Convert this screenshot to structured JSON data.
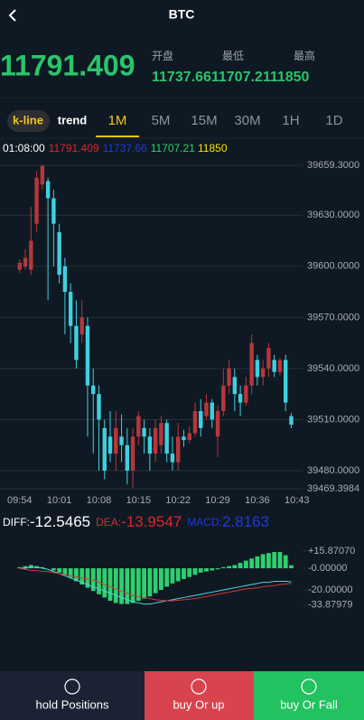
{
  "header": {
    "title": "BTC"
  },
  "ticker": {
    "price": "11791.409",
    "labels": [
      "开盘",
      "最低",
      "最高"
    ],
    "values": [
      "11737.66",
      "11707.21",
      "11850"
    ]
  },
  "tabs": {
    "modes": [
      "k-line",
      "trend"
    ],
    "selected_mode": 0,
    "intervals": [
      "1M",
      "5M",
      "15M",
      "30M",
      "1H",
      "1D"
    ],
    "selected_interval": 0
  },
  "info": [
    "01:08:00",
    "11791.409",
    "11737.66",
    "11707.21",
    "11850"
  ],
  "chart_data": [
    {
      "type": "candlestick",
      "up_color": "#b5373c",
      "down_color": "#3fd0de",
      "grid": true,
      "open": [
        39598,
        39600,
        39598,
        39625,
        39648,
        39650,
        39640,
        39620,
        39600,
        39585,
        39565,
        39560,
        39565,
        39530,
        39525,
        39505,
        39500,
        39490,
        39500,
        39495,
        39480,
        39500,
        39505,
        39500,
        39490,
        39495,
        39508,
        39490,
        39485,
        39500,
        39498,
        39502,
        39515,
        39512,
        39520,
        39500,
        39515,
        39530,
        39535,
        39525,
        39520,
        39530,
        39545,
        39535,
        39540,
        39545,
        39538,
        39545,
        39512
      ],
      "high": [
        39604,
        39610,
        39635,
        39656,
        39659.3,
        39652,
        39645,
        39625,
        39605,
        39590,
        39580,
        39580,
        39570,
        39540,
        39530,
        39510,
        39515,
        39515,
        39513,
        39505,
        39505,
        39515,
        39510,
        39505,
        39510,
        39512,
        39510,
        39500,
        39508,
        39504,
        39506,
        39520,
        39522,
        39525,
        39522,
        39518,
        39540,
        39545,
        39540,
        39530,
        39535,
        39560,
        39548,
        39545,
        39555,
        39548,
        39546,
        39548,
        39514
      ],
      "low": [
        39596,
        39598,
        39595,
        39620,
        39645,
        39580,
        39600,
        39590,
        39560,
        39555,
        39540,
        39555,
        39500,
        39490,
        39480,
        39475,
        39485,
        39480,
        39485,
        39472,
        39470,
        39495,
        39490,
        39480,
        39485,
        39490,
        39485,
        39480,
        39480,
        39494,
        39496,
        39500,
        39500,
        39510,
        39505,
        39488,
        39512,
        39525,
        39515,
        39512,
        39518,
        39525,
        39530,
        39530,
        39535,
        39535,
        39536,
        39515,
        39505
      ],
      "close": [
        39602,
        39605,
        39615,
        39652,
        39659,
        39640,
        39625,
        39595,
        39585,
        39565,
        39545,
        39570,
        39530,
        39525,
        39510,
        39480,
        39490,
        39505,
        39495,
        39480,
        39500,
        39512,
        39500,
        39490,
        39505,
        39508,
        39490,
        39485,
        39500,
        39498,
        39502,
        39515,
        39505,
        39520,
        39510,
        39515,
        39530,
        39540,
        39525,
        39520,
        39530,
        39555,
        39535,
        39540,
        39552,
        39538,
        39545,
        39520,
        39507
      ],
      "xlim": [
        -3,
        50
      ],
      "xticks": [
        {
          "value": 0,
          "label": "09:54"
        },
        {
          "value": 7,
          "label": "10:01"
        },
        {
          "value": 14,
          "label": "10:08"
        },
        {
          "value": 21,
          "label": "10:15"
        },
        {
          "value": 28,
          "label": "10:22"
        },
        {
          "value": 35,
          "label": "10:29"
        },
        {
          "value": 42,
          "label": "10:36"
        },
        {
          "value": 49,
          "label": "10:43"
        }
      ],
      "ylim": [
        39469.3984,
        39659.3
      ],
      "yticks": [
        {
          "value": 39659.3,
          "label": "39659.3000"
        },
        {
          "value": 39630,
          "label": "39630.0000"
        },
        {
          "value": 39600,
          "label": "39600.0000"
        },
        {
          "value": 39570,
          "label": "39570.0000"
        },
        {
          "value": 39540,
          "label": "39540.0000"
        },
        {
          "value": 39510,
          "label": "39510.0000"
        },
        {
          "value": 39480,
          "label": "39480.0000"
        },
        {
          "value": 39469.3984,
          "label": "39469.3984"
        }
      ]
    },
    {
      "type": "macd",
      "xlim": [
        -3,
        50
      ],
      "ylim": [
        -33.87979,
        15.8707
      ],
      "yticks": [
        {
          "value": 15.8707,
          "label": "+15.87070"
        },
        {
          "value": 0,
          "label": "-0.00000"
        },
        {
          "value": -20,
          "label": "-20.00000"
        },
        {
          "value": -33.87979,
          "label": "-33.87979"
        }
      ],
      "series": [
        {
          "name": "DIFF:",
          "kind": "line",
          "color": "#4fd3e0",
          "label_color": "#ffffff",
          "values": [
            0,
            0,
            1,
            1,
            0,
            -1,
            -3,
            -5,
            -7,
            -9,
            -11,
            -13,
            -15,
            -17,
            -19,
            -21,
            -23,
            -25,
            -27,
            -29,
            -31,
            -32,
            -33,
            -33,
            -32,
            -31,
            -30,
            -29,
            -28,
            -27,
            -26,
            -25,
            -24,
            -23,
            -22,
            -21,
            -20,
            -19,
            -18,
            -17,
            -16,
            -15,
            -14,
            -13,
            -13,
            -12,
            -12,
            -12,
            -12.5465
          ]
        },
        {
          "name": "DEA:",
          "kind": "line",
          "color": "#d23a3a",
          "label_color": "#e0262c",
          "values": [
            0,
            -1,
            -2,
            -2,
            -3,
            -3,
            -4,
            -5,
            -6,
            -7,
            -8,
            -9,
            -10,
            -11,
            -13,
            -15,
            -17,
            -19,
            -21,
            -23,
            -25,
            -26,
            -27,
            -28,
            -29,
            -29.5,
            -30,
            -30,
            -29.5,
            -29,
            -28.5,
            -28,
            -27,
            -26,
            -25,
            -24,
            -23,
            -22,
            -21,
            -20,
            -19,
            -18.5,
            -18,
            -17,
            -16.5,
            -16,
            -15,
            -14.5,
            -13.9547
          ]
        },
        {
          "name": "MACD:",
          "kind": "bar",
          "color": "#2fcf6e",
          "label_color": "#2338d4",
          "values": [
            1,
            2,
            3,
            2,
            1,
            0,
            -2,
            -4,
            -6,
            -9,
            -12,
            -15,
            -18,
            -21,
            -24,
            -27,
            -30,
            -32,
            -33,
            -33,
            -32,
            -30,
            -28,
            -26,
            -23,
            -20,
            -17,
            -14,
            -12,
            -10,
            -8,
            -6,
            -4,
            -3,
            -2,
            -1,
            1,
            2,
            3,
            5,
            7,
            9,
            11,
            13,
            14,
            15,
            15,
            12,
            2.8163
          ]
        }
      ]
    }
  ],
  "footer": {
    "buttons": [
      "hold Positions",
      "buy Or up",
      "buy Or Fall"
    ]
  }
}
